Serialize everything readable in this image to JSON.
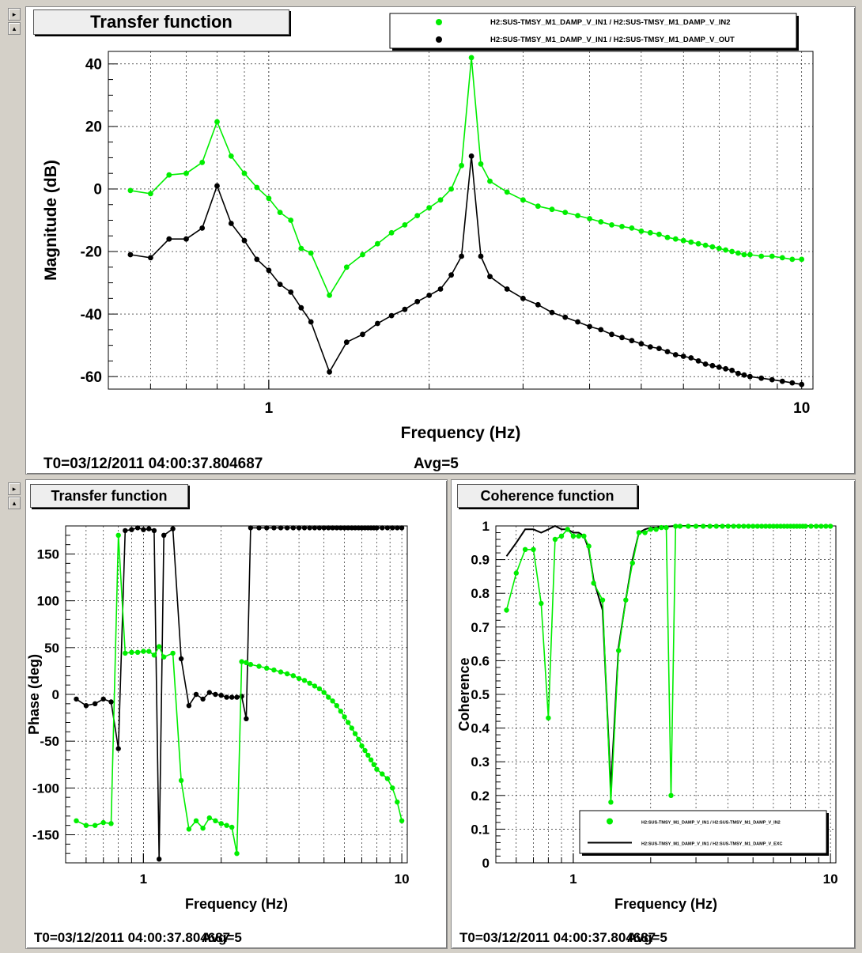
{
  "top": {
    "title": "Transfer function",
    "xlabel": "Frequency (Hz)",
    "ylabel": "Magnitude (dB)",
    "footer_t0": "T0=03/12/2011 04:00:37.804687",
    "footer_avg": "Avg=5",
    "legend": [
      {
        "label": "H2:SUS-TMSY_M1_DAMP_V_IN1 / H2:SUS-TMSY_M1_DAMP_V_IN2",
        "color": "#00ee00"
      },
      {
        "label": "H2:SUS-TMSY_M1_DAMP_V_IN1 / H2:SUS-TMSY_M1_DAMP_V_OUT",
        "color": "#000000"
      }
    ]
  },
  "bottom_left": {
    "title": "Transfer function",
    "xlabel": "Frequency (Hz)",
    "ylabel": "Phase (deg)",
    "footer_t0": "T0=03/12/2011 04:00:37.804687",
    "footer_avg": "Avg=5"
  },
  "bottom_right": {
    "title": "Coherence function",
    "xlabel": "Frequency (Hz)",
    "ylabel": "Coherence",
    "footer_t0": "T0=03/12/2011 04:00:37.804687",
    "footer_avg": "Avg=5",
    "legend": [
      {
        "label": "H2:SUS-TMSY_M1_DAMP_V_IN1 / H2:SUS-TMSY_M1_DAMP_V_IN2",
        "color": "#00ee00"
      },
      {
        "label": "H2:SUS-TMSY_M1_DAMP_V_IN1 / H2:SUS-TMSY_M1_DAMP_V_EXC",
        "color": "#000000"
      }
    ]
  },
  "chart_data": [
    {
      "type": "line",
      "title": "Transfer function",
      "xlabel": "Frequency (Hz)",
      "ylabel": "Magnitude (dB)",
      "xscale": "log",
      "xlim": [
        0.5,
        10.5
      ],
      "ylim": [
        -64,
        44
      ],
      "xticks": [
        "1",
        "10"
      ],
      "yticks": [
        "40",
        "20",
        "0",
        "-20",
        "-40",
        "-60"
      ],
      "grid": true,
      "legend_position": "top-right",
      "x": [
        0.55,
        0.6,
        0.65,
        0.7,
        0.75,
        0.8,
        0.85,
        0.9,
        0.95,
        1.0,
        1.05,
        1.1,
        1.15,
        1.2,
        1.3,
        1.4,
        1.5,
        1.6,
        1.7,
        1.8,
        1.9,
        2.0,
        2.1,
        2.2,
        2.3,
        2.4,
        2.5,
        2.6,
        2.8,
        3.0,
        3.2,
        3.4,
        3.6,
        3.8,
        4.0,
        4.2,
        4.4,
        4.6,
        4.8,
        5.0,
        5.2,
        5.4,
        5.6,
        5.8,
        6.0,
        6.2,
        6.4,
        6.6,
        6.8,
        7.0,
        7.2,
        7.4,
        7.6,
        7.8,
        8.0,
        8.4,
        8.8,
        9.2,
        9.6,
        10.0
      ],
      "series": [
        {
          "name": "H2:SUS-TMSY_M1_DAMP_V_IN1 / H2:SUS-TMSY_M1_DAMP_V_IN2",
          "color": "#00ee00",
          "values": [
            -0.5,
            -1.5,
            4.5,
            5.0,
            8.5,
            21.5,
            10.5,
            5.0,
            0.5,
            -3.0,
            -7.5,
            -10.0,
            -19.0,
            -20.5,
            -34.0,
            -25.0,
            -21.0,
            -17.5,
            -14.0,
            -11.5,
            -8.5,
            -6.0,
            -3.5,
            0.0,
            7.5,
            42.0,
            8.0,
            2.5,
            -1.0,
            -3.5,
            -5.5,
            -6.5,
            -7.5,
            -8.5,
            -9.5,
            -10.5,
            -11.5,
            -12.0,
            -12.5,
            -13.5,
            -14.0,
            -14.5,
            -15.5,
            -16.0,
            -16.5,
            -17.0,
            -17.5,
            -18.0,
            -18.5,
            -19.0,
            -19.5,
            -20.0,
            -20.5,
            -21.0,
            -21.0,
            -21.5,
            -21.5,
            -22.0,
            -22.5,
            -22.5
          ]
        },
        {
          "name": "H2:SUS-TMSY_M1_DAMP_V_IN1 / H2:SUS-TMSY_M1_DAMP_V_OUT",
          "color": "#000000",
          "values": [
            -21.0,
            -22.0,
            -16.0,
            -16.0,
            -12.5,
            1.0,
            -11.0,
            -16.5,
            -22.5,
            -26.0,
            -30.5,
            -33.0,
            -38.0,
            -42.5,
            -58.5,
            -49.0,
            -46.5,
            -43.0,
            -40.5,
            -38.5,
            -36.0,
            -34.0,
            -32.0,
            -27.5,
            -21.5,
            10.5,
            -21.5,
            -28.0,
            -32.0,
            -35.0,
            -37.0,
            -39.5,
            -41.0,
            -42.5,
            -44.0,
            -45.0,
            -46.5,
            -47.5,
            -48.5,
            -49.5,
            -50.5,
            -51.0,
            -52.0,
            -53.0,
            -53.5,
            -54.0,
            -55.0,
            -56.0,
            -56.5,
            -57.0,
            -57.5,
            -58.0,
            -59.0,
            -59.5,
            -60.0,
            -60.5,
            -61.0,
            -61.5,
            -62.0,
            -62.5
          ]
        }
      ]
    },
    {
      "type": "line",
      "title": "Transfer function",
      "xlabel": "Frequency (Hz)",
      "ylabel": "Phase (deg)",
      "xscale": "log",
      "xlim": [
        0.5,
        10.5
      ],
      "ylim": [
        -180,
        180
      ],
      "xticks": [
        "1",
        "10"
      ],
      "yticks": [
        "150",
        "100",
        "50",
        "0",
        "-50",
        "-100",
        "-150"
      ],
      "grid": true,
      "x": [
        0.55,
        0.6,
        0.65,
        0.7,
        0.75,
        0.8,
        0.85,
        0.9,
        0.95,
        1.0,
        1.05,
        1.1,
        1.15,
        1.2,
        1.3,
        1.4,
        1.5,
        1.6,
        1.7,
        1.8,
        1.9,
        2.0,
        2.1,
        2.2,
        2.3,
        2.4,
        2.5,
        2.6,
        2.8,
        3.0,
        3.2,
        3.4,
        3.6,
        3.8,
        4.0,
        4.2,
        4.4,
        4.6,
        4.8,
        5.0,
        5.2,
        5.4,
        5.6,
        5.8,
        6.0,
        6.2,
        6.4,
        6.6,
        6.8,
        7.0,
        7.2,
        7.4,
        7.6,
        7.8,
        8.0,
        8.4,
        8.8,
        9.2,
        9.6,
        10.0
      ],
      "series": [
        {
          "name": "H2:SUS-TMSY_M1_DAMP_V_IN1 / H2:SUS-TMSY_M1_DAMP_V_IN2",
          "color": "#00ee00",
          "values": [
            -135,
            -140,
            -140,
            -137,
            -138,
            170,
            44,
            45,
            45,
            46,
            46,
            42,
            51,
            40,
            44,
            -92,
            -144,
            -135,
            -143,
            -132,
            -135,
            -138,
            -140,
            -142,
            -170,
            35,
            34,
            32,
            30,
            28,
            26,
            24,
            22,
            20,
            17,
            15,
            12,
            9,
            6,
            2,
            -3,
            -7,
            -12,
            -18,
            -24,
            -30,
            -36,
            -42,
            -48,
            -55,
            -60,
            -65,
            -70,
            -75,
            -80,
            -85,
            -90,
            -100,
            -115,
            -135
          ]
        },
        {
          "name": "H2:SUS-TMSY_M1_DAMP_V_IN1 / H2:SUS-TMSY_M1_DAMP_V_OUT",
          "color": "#000000",
          "values": [
            -5,
            -12,
            -10,
            -5,
            -8,
            -58,
            175,
            176,
            178,
            176,
            177,
            175,
            -176,
            170,
            177,
            38,
            -12,
            0,
            -5,
            2,
            0,
            -1,
            -3,
            -3,
            -3,
            -2,
            -26,
            178,
            178,
            178,
            178,
            178,
            178,
            178,
            178,
            178,
            178,
            178,
            178,
            178,
            178,
            178,
            178,
            178,
            178,
            178,
            178,
            178,
            178,
            178,
            178,
            178,
            178,
            178,
            178,
            178,
            178,
            178,
            178,
            178
          ]
        }
      ]
    },
    {
      "type": "line",
      "title": "Coherence function",
      "xlabel": "Frequency (Hz)",
      "ylabel": "Coherence",
      "xscale": "log",
      "xlim": [
        0.5,
        10.5
      ],
      "ylim": [
        0,
        1
      ],
      "xticks": [
        "1",
        "10"
      ],
      "yticks": [
        "1",
        "0.9",
        "0.8",
        "0.7",
        "0.6",
        "0.5",
        "0.4",
        "0.3",
        "0.2",
        "0.1",
        "0"
      ],
      "grid": true,
      "legend_position": "bottom-right",
      "x": [
        0.55,
        0.6,
        0.65,
        0.7,
        0.75,
        0.8,
        0.85,
        0.9,
        0.95,
        1.0,
        1.05,
        1.1,
        1.15,
        1.2,
        1.3,
        1.4,
        1.5,
        1.6,
        1.7,
        1.8,
        1.9,
        2.0,
        2.1,
        2.2,
        2.3,
        2.4,
        2.5,
        2.6,
        2.8,
        3.0,
        3.2,
        3.4,
        3.6,
        3.8,
        4.0,
        4.2,
        4.4,
        4.6,
        4.8,
        5.0,
        5.2,
        5.4,
        5.6,
        5.8,
        6.0,
        6.2,
        6.4,
        6.6,
        6.8,
        7.0,
        7.2,
        7.4,
        7.6,
        7.8,
        8.0,
        8.4,
        8.8,
        9.2,
        9.6,
        10.0
      ],
      "series": [
        {
          "name": "H2:SUS-TMSY_M1_DAMP_V_IN1 / H2:SUS-TMSY_M1_DAMP_V_IN2",
          "color": "#00ee00",
          "values": [
            0.75,
            0.86,
            0.93,
            0.93,
            0.77,
            0.43,
            0.96,
            0.97,
            0.99,
            0.97,
            0.97,
            0.97,
            0.94,
            0.83,
            0.78,
            0.18,
            0.63,
            0.78,
            0.89,
            0.98,
            0.98,
            0.99,
            0.99,
            0.995,
            0.995,
            0.2,
            0.999,
            0.999,
            0.999,
            0.999,
            0.999,
            0.999,
            0.999,
            0.999,
            0.999,
            0.999,
            0.999,
            0.999,
            0.999,
            0.999,
            0.999,
            0.999,
            0.999,
            0.999,
            0.999,
            0.999,
            0.999,
            0.999,
            0.999,
            0.999,
            0.999,
            0.999,
            0.999,
            0.999,
            0.999,
            0.999,
            0.999,
            0.999,
            0.999,
            0.999
          ]
        },
        {
          "name": "H2:SUS-TMSY_M1_DAMP_V_IN1 / H2:SUS-TMSY_M1_DAMP_V_EXC",
          "color": "#000000",
          "values": [
            0.91,
            0.95,
            0.99,
            0.99,
            0.98,
            0.99,
            1.0,
            0.99,
            0.99,
            0.98,
            0.98,
            0.97,
            0.93,
            0.84,
            0.75,
            0.22,
            0.64,
            0.78,
            0.9,
            0.98,
            0.99,
            0.995,
            0.995,
            0.998,
            0.998,
            0.999,
            1.0,
            1.0,
            1.0,
            1.0,
            1.0,
            1.0,
            1.0,
            1.0,
            1.0,
            1.0,
            1.0,
            1.0,
            1.0,
            1.0,
            1.0,
            1.0,
            1.0,
            1.0,
            1.0,
            1.0,
            1.0,
            1.0,
            1.0,
            1.0,
            1.0,
            1.0,
            1.0,
            1.0,
            1.0,
            1.0,
            1.0,
            1.0,
            1.0,
            1.0
          ]
        }
      ]
    }
  ]
}
